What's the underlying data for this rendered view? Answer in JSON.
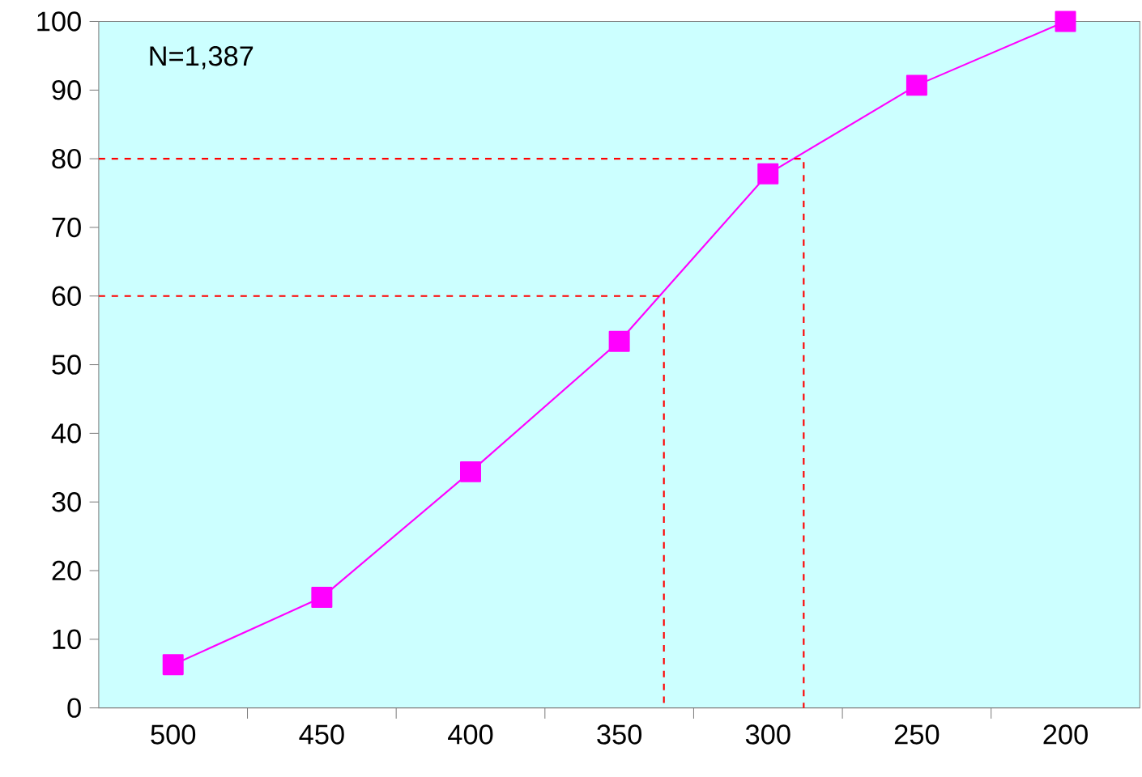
{
  "chart_data": {
    "type": "line",
    "x": [
      500,
      450,
      400,
      350,
      300,
      250,
      200
    ],
    "series": [
      {
        "color": "#ff00ff",
        "values": [
          6.3,
          16.1,
          34.4,
          53.4,
          77.8,
          90.7,
          100
        ],
        "marker": "square",
        "line_style": "solid"
      },
      {
        "type": "line",
        "color": "#ff0000",
        "x": [
          525,
          335,
          335
        ],
        "values": [
          60,
          60,
          0
        ],
        "marker": "none",
        "line_style": "dashed"
      },
      {
        "type": "line",
        "color": "#ff0000",
        "x": [
          525,
          288,
          288
        ],
        "values": [
          80,
          80,
          0
        ],
        "marker": "none",
        "line_style": "dashed"
      }
    ],
    "xlim": [
      525,
      175
    ],
    "ylim": [
      0,
      100
    ],
    "xticks": [
      500,
      {
        "value": 475,
        "label": null
      },
      450,
      {
        "value": 425,
        "label": null
      },
      400,
      {
        "value": 375,
        "label": null
      },
      350,
      {
        "value": 325,
        "label": null
      },
      300,
      {
        "value": 275,
        "label": null
      },
      250,
      {
        "value": 225,
        "label": null
      },
      200
    ],
    "yticks": [
      0,
      10,
      20,
      30,
      40,
      50,
      60,
      70,
      80,
      90,
      100
    ],
    "annotations": [
      "N=1,387"
    ]
  }
}
